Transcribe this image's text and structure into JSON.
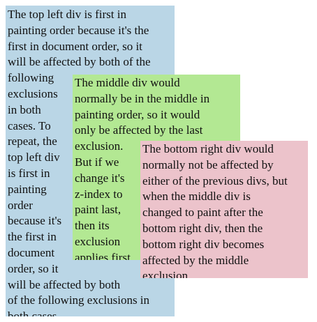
{
  "colors": {
    "top_left_bg": "#bad6e6",
    "middle_bg": "#b3e893",
    "bottom_right_bg": "#ecc3cb",
    "text": "#111111"
  },
  "top_left": {
    "lines": [
      "The top left div is first in",
      "painting order because it's the",
      "first in document order, so it",
      "will be affected by both of the",
      "following",
      "exclusions",
      "in both",
      "cases. To",
      "repeat, the",
      "top left div",
      "is first in",
      "painting",
      "order",
      "because it's",
      "the first in",
      "document",
      "order, so it",
      "will be affected by both",
      "of the following exclusions in",
      "both cases."
    ]
  },
  "middle": {
    "lines": [
      "The middle div would",
      "normally be in the middle in",
      "painting order, so it would",
      "only be affected by the last",
      "exclusion.",
      "But if we",
      "change it's",
      "z-index to",
      "paint last,",
      "then its",
      "exclusion",
      "applies first."
    ]
  },
  "bottom_right": {
    "lines": [
      "The bottom right div would",
      "normally not be affected by",
      "either of the previous divs, but",
      "when the middle div is",
      "changed to paint after the",
      "bottom right div, then the",
      "bottom right div becomes",
      "affected by the middle",
      "exclusion."
    ]
  }
}
